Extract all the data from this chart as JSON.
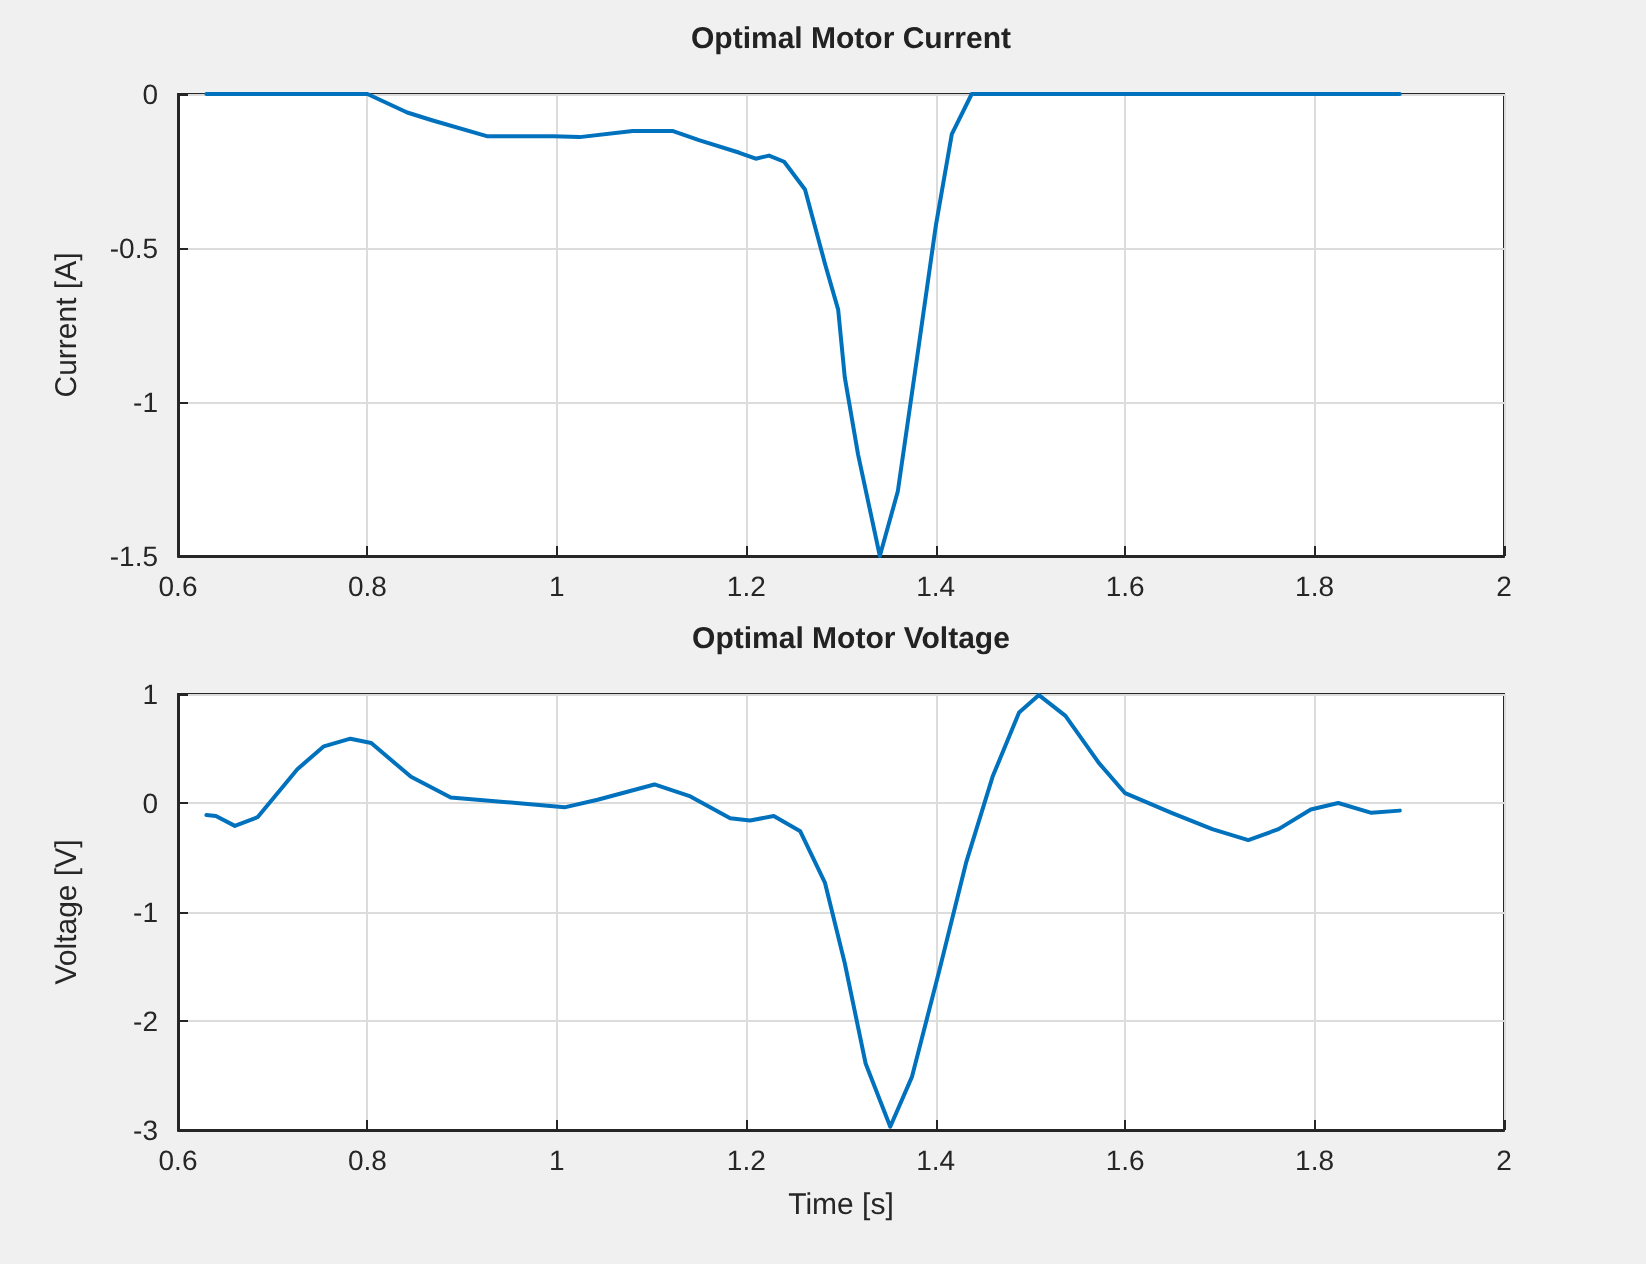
{
  "chart_data": [
    {
      "type": "line",
      "title": "Optimal Motor Current",
      "ylabel": "Current [A]",
      "xlim": [
        0.6,
        2
      ],
      "xticks": [
        0.6,
        0.8,
        1,
        1.2,
        1.4,
        1.6,
        1.8,
        2
      ],
      "ylim": [
        -1.5,
        0
      ],
      "yticks": [
        -1.5,
        -1,
        -0.5,
        0
      ],
      "grid": true,
      "marker": "none",
      "line_style": "solid",
      "series": [
        {
          "color": "#0072bd",
          "x": [
            0.63,
            0.7,
            0.8,
            0.842,
            0.869,
            0.926,
            0.996,
            1.024,
            1.08,
            1.122,
            1.15,
            1.192,
            1.21,
            1.224,
            1.24,
            1.262,
            1.283,
            1.297,
            1.304,
            1.318,
            1.341,
            1.36,
            1.382,
            1.4,
            1.417,
            1.438,
            1.5,
            1.7,
            1.89
          ],
          "values": [
            0,
            0,
            0,
            -0.06,
            -0.086,
            -0.137,
            -0.137,
            -0.14,
            -0.12,
            -0.12,
            -0.15,
            -0.19,
            -0.21,
            -0.2,
            -0.22,
            -0.31,
            -0.55,
            -0.7,
            -0.92,
            -1.17,
            -1.5,
            -1.29,
            -0.82,
            -0.43,
            -0.13,
            0,
            0,
            0,
            0
          ]
        }
      ]
    },
    {
      "type": "line",
      "title": "Optimal Motor Voltage",
      "xlabel": "Time [s]",
      "ylabel": "Voltage [V]",
      "xlim": [
        0.6,
        2
      ],
      "xticks": [
        0.6,
        0.8,
        1,
        1.2,
        1.4,
        1.6,
        1.8,
        2
      ],
      "ylim": [
        -3,
        1
      ],
      "yticks": [
        -3,
        -2,
        -1,
        0,
        1
      ],
      "grid": true,
      "marker": "none",
      "line_style": "solid",
      "series": [
        {
          "color": "#0072bd",
          "x": [
            0.63,
            0.64,
            0.66,
            0.684,
            0.726,
            0.754,
            0.782,
            0.804,
            0.846,
            0.888,
            0.944,
            1.008,
            1.043,
            1.103,
            1.141,
            1.183,
            1.204,
            1.229,
            1.257,
            1.283,
            1.304,
            1.326,
            1.352,
            1.375,
            1.404,
            1.432,
            1.46,
            1.488,
            1.509,
            1.537,
            1.572,
            1.6,
            1.649,
            1.692,
            1.73,
            1.762,
            1.796,
            1.825,
            1.86,
            1.89
          ],
          "values": [
            -0.11,
            -0.12,
            -0.21,
            -0.13,
            0.31,
            0.52,
            0.59,
            0.55,
            0.24,
            0.05,
            0.01,
            -0.04,
            0.03,
            0.17,
            0.06,
            -0.14,
            -0.16,
            -0.12,
            -0.26,
            -0.73,
            -1.47,
            -2.39,
            -2.97,
            -2.51,
            -1.53,
            -0.55,
            0.24,
            0.83,
            0.99,
            0.8,
            0.37,
            0.09,
            -0.09,
            -0.24,
            -0.34,
            -0.24,
            -0.06,
            0,
            -0.09,
            -0.07
          ]
        }
      ]
    }
  ]
}
